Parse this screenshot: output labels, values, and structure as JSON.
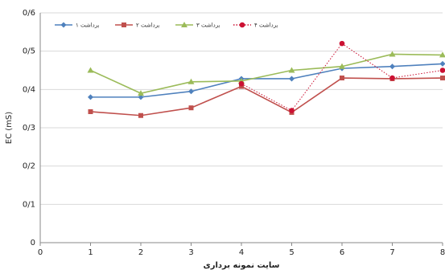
{
  "chart_data": {
    "type": "line",
    "x": [
      1,
      2,
      3,
      4,
      5,
      6,
      7,
      8
    ],
    "xticks": [
      "0",
      "1",
      "2",
      "3",
      "4",
      "5",
      "6",
      "7",
      "8"
    ],
    "yticks": [
      "0",
      "0/1",
      "0/2",
      "0/3",
      "0/4",
      "0/5",
      "0/6"
    ],
    "xlim": [
      0,
      8
    ],
    "ylim": [
      0,
      0.6
    ],
    "xlabel": "سایت نمونه برداری",
    "ylabel": "EC (mS)",
    "grid": "horizontal",
    "legend_position": "top",
    "series": [
      {
        "name": "برداشت ۱",
        "color": "#4f81bd",
        "marker": "diamond",
        "line": "solid",
        "x": [
          1,
          2,
          3,
          4,
          5,
          6,
          7,
          8
        ],
        "values": [
          0.38,
          0.38,
          0.395,
          0.428,
          0.428,
          0.455,
          0.46,
          0.467
        ]
      },
      {
        "name": "برداشت ۲",
        "color": "#c0504d",
        "marker": "square",
        "line": "solid",
        "x": [
          1,
          2,
          3,
          4,
          5,
          6,
          7,
          8
        ],
        "values": [
          0.342,
          0.332,
          0.352,
          0.408,
          0.34,
          0.43,
          0.428,
          0.43
        ]
      },
      {
        "name": "برداشت ۳",
        "color": "#9bbb59",
        "marker": "triangle",
        "line": "solid",
        "x": [
          1,
          2,
          3,
          4,
          5,
          6,
          7,
          8
        ],
        "values": [
          0.45,
          0.39,
          0.42,
          0.422,
          0.45,
          0.46,
          0.492,
          0.49
        ]
      },
      {
        "name": "برداشت ۴",
        "color": "#cc1133",
        "marker": "circle",
        "line": "dotted",
        "x": [
          4,
          5,
          6,
          7,
          8
        ],
        "values": [
          0.415,
          0.345,
          0.52,
          0.43,
          0.45
        ]
      }
    ]
  }
}
